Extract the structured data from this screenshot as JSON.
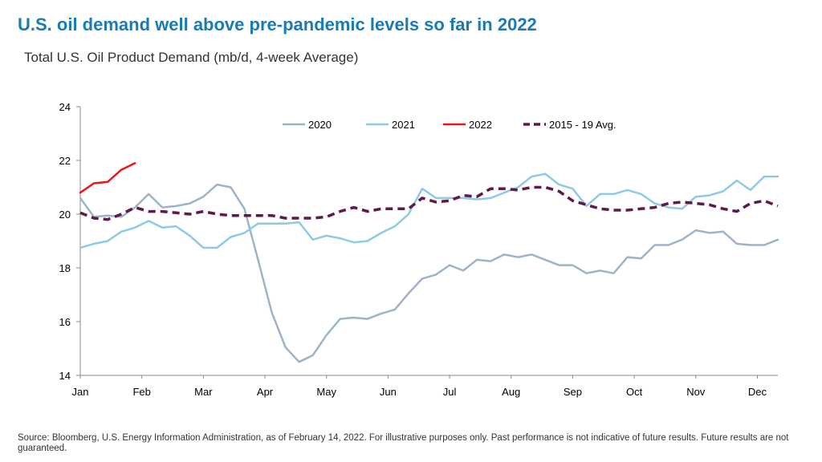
{
  "title": "U.S. oil demand well above pre-pandemic levels so far in 2022",
  "subtitle": "Total U.S. Oil Product Demand (mb/d, 4-week Average)",
  "source": "Source: Bloomberg, U.S. Energy Information Administration, as of February 14, 2022. For illustrative purposes only. Past performance is not indicative of future results. Future results are not guaranteed.",
  "colors": {
    "title": "#1a7ab5",
    "s2020": "#9fb3c8",
    "s2021": "#8ec9e8",
    "s2022": "#e8161c",
    "savg": "#5e1a4a",
    "axis": "#888888"
  },
  "chart_data": {
    "type": "line",
    "title": "Total U.S. Oil Product Demand (mb/d, 4-week Average)",
    "xlabel": "",
    "ylabel": "",
    "ylim": [
      14,
      24
    ],
    "yticks": [
      14,
      16,
      18,
      20,
      22,
      24
    ],
    "xlim": [
      0,
      51
    ],
    "month_labels": [
      "Jan",
      "Feb",
      "Mar",
      "Apr",
      "May",
      "Jun",
      "Jul",
      "Aug",
      "Sep",
      "Oct",
      "Nov",
      "Dec"
    ],
    "month_positions": [
      0,
      4.5,
      9,
      13.5,
      18,
      22.5,
      27,
      31.5,
      36,
      40.5,
      45,
      49.5
    ],
    "legend_position": "top",
    "series": [
      {
        "name": "2020",
        "color": "#9fb3c8",
        "dash": "solid",
        "x": [
          0,
          1,
          2,
          3,
          4,
          5,
          6,
          7,
          8,
          9,
          10,
          11,
          12,
          13,
          14,
          15,
          16,
          17,
          18,
          19,
          20,
          21,
          22,
          23,
          24,
          25,
          26,
          27,
          28,
          29,
          30,
          31,
          32,
          33,
          34,
          35,
          36,
          37,
          38,
          39,
          40,
          41,
          42,
          43,
          44,
          45,
          46,
          47,
          48,
          49,
          50,
          51
        ],
        "values": [
          20.6,
          19.9,
          19.95,
          19.9,
          20.25,
          20.75,
          20.25,
          20.3,
          20.4,
          20.65,
          21.1,
          21.0,
          20.2,
          18.3,
          16.35,
          15.05,
          14.5,
          14.75,
          15.5,
          16.1,
          16.15,
          16.1,
          16.3,
          16.45,
          17.05,
          17.6,
          17.75,
          18.1,
          17.9,
          18.3,
          18.25,
          18.5,
          18.4,
          18.5,
          18.3,
          18.1,
          18.1,
          17.8,
          17.9,
          17.8,
          18.4,
          18.35,
          18.85,
          18.85,
          19.05,
          19.4,
          19.3,
          19.35,
          18.9,
          18.85,
          18.85,
          19.05
        ]
      },
      {
        "name": "2021",
        "color": "#8ec9e8",
        "dash": "solid",
        "x": [
          0,
          1,
          2,
          3,
          4,
          5,
          6,
          7,
          8,
          9,
          10,
          11,
          12,
          13,
          14,
          15,
          16,
          17,
          18,
          19,
          20,
          21,
          22,
          23,
          24,
          25,
          26,
          27,
          28,
          29,
          30,
          31,
          32,
          33,
          34,
          35,
          36,
          37,
          38,
          39,
          40,
          41,
          42,
          43,
          44,
          45,
          46,
          47,
          48,
          49,
          50,
          51
        ],
        "values": [
          18.75,
          18.9,
          19.0,
          19.35,
          19.5,
          19.75,
          19.5,
          19.55,
          19.2,
          18.75,
          18.75,
          19.15,
          19.3,
          19.65,
          19.65,
          19.65,
          19.7,
          19.05,
          19.2,
          19.1,
          18.95,
          19.0,
          19.3,
          19.55,
          20.0,
          20.95,
          20.6,
          20.6,
          20.6,
          20.55,
          20.6,
          20.8,
          21.0,
          21.4,
          21.5,
          21.1,
          20.95,
          20.3,
          20.75,
          20.75,
          20.9,
          20.75,
          20.4,
          20.25,
          20.2,
          20.65,
          20.7,
          20.85,
          21.25,
          20.9,
          21.4,
          21.4
        ]
      },
      {
        "name": "2022",
        "color": "#e8161c",
        "dash": "solid",
        "x": [
          0,
          1,
          2,
          3,
          4
        ],
        "values": [
          20.8,
          21.15,
          21.2,
          21.65,
          21.9
        ]
      },
      {
        "name": "2015 - 19 Avg.",
        "color": "#5e1a4a",
        "dash": "dashed",
        "x": [
          0,
          1,
          2,
          3,
          4,
          5,
          6,
          7,
          8,
          9,
          10,
          11,
          12,
          13,
          14,
          15,
          16,
          17,
          18,
          19,
          20,
          21,
          22,
          23,
          24,
          25,
          26,
          27,
          28,
          29,
          30,
          31,
          32,
          33,
          34,
          35,
          36,
          37,
          38,
          39,
          40,
          41,
          42,
          43,
          44,
          45,
          46,
          47,
          48,
          49,
          50,
          51
        ],
        "values": [
          20.05,
          19.85,
          19.8,
          20.0,
          20.25,
          20.1,
          20.1,
          20.05,
          20.0,
          20.1,
          20.0,
          19.95,
          19.95,
          19.95,
          19.95,
          19.85,
          19.85,
          19.85,
          19.9,
          20.1,
          20.25,
          20.1,
          20.2,
          20.2,
          20.2,
          20.6,
          20.45,
          20.5,
          20.7,
          20.65,
          20.95,
          20.95,
          20.9,
          21.0,
          21.0,
          20.85,
          20.5,
          20.35,
          20.2,
          20.15,
          20.15,
          20.2,
          20.25,
          20.4,
          20.45,
          20.4,
          20.35,
          20.2,
          20.1,
          20.4,
          20.5,
          20.3
        ]
      }
    ]
  }
}
